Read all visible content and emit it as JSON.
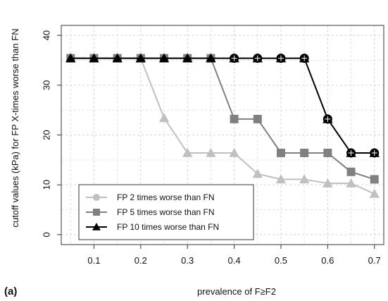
{
  "chart_data": {
    "type": "line",
    "panel_label": "(a)",
    "title": "",
    "xlabel": "prevalence of F≥F2",
    "ylabel": "cutoff values (kPa) for FP X-times worse than FN",
    "xlim": [
      0.03,
      0.72
    ],
    "ylim": [
      -2,
      42
    ],
    "xticks": [
      0.1,
      0.2,
      0.3,
      0.4,
      0.5,
      0.6,
      0.7
    ],
    "xtick_labels": [
      "0.1",
      "0.2",
      "0.3",
      "0.4",
      "0.5",
      "0.6",
      "0.7"
    ],
    "yticks": [
      0,
      10,
      20,
      30,
      40
    ],
    "ytick_labels": [
      "0",
      "10",
      "20",
      "30",
      "40"
    ],
    "grid": true,
    "legend_position": "bottom-left",
    "x": [
      0.05,
      0.1,
      0.15,
      0.2,
      0.25,
      0.3,
      0.35,
      0.4,
      0.45,
      0.5,
      0.55,
      0.6,
      0.65,
      0.7
    ],
    "series": [
      {
        "name": "FP 2 times worse than FN",
        "color": "#c0c0c0",
        "marker": "circle",
        "values": [
          35.4,
          35.4,
          35.4,
          35.4,
          null,
          null,
          null,
          null,
          null,
          null,
          null,
          null,
          null,
          null
        ]
      },
      {
        "name": "FP 5 times worse than FN",
        "color": "#808080",
        "marker": "square",
        "values": [
          35.4,
          35.4,
          35.4,
          35.4,
          35.4,
          35.4,
          35.4,
          23.2,
          23.2,
          16.4,
          16.4,
          16.4,
          12.6,
          11.1
        ]
      },
      {
        "name": "FP 10 times worse than FN",
        "color": "#000000",
        "marker": "triangle",
        "values": [
          35.4,
          35.4,
          35.4,
          35.4,
          35.4,
          35.4,
          35.4,
          35.4,
          35.4,
          35.4,
          35.4,
          23.2,
          16.4,
          16.4
        ]
      },
      {
        "name": "",
        "color": "#c0c0c0",
        "marker": "triangle",
        "values": [
          null,
          null,
          null,
          35.4,
          23.4,
          16.4,
          16.4,
          16.4,
          12.2,
          11.1,
          11.1,
          10.3,
          10.3,
          8.2
        ]
      }
    ],
    "overlay_circles": {
      "color": "#000000",
      "x": [
        0.4,
        0.45,
        0.5,
        0.55,
        0.6,
        0.65,
        0.7
      ],
      "values": [
        35.4,
        35.4,
        35.4,
        35.4,
        23.2,
        16.4,
        16.4
      ]
    }
  }
}
